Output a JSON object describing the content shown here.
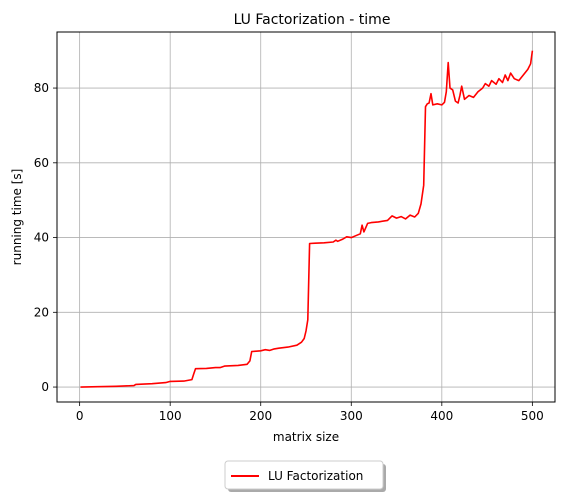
{
  "chart_data": {
    "type": "line",
    "title": "LU Factorization - time",
    "xlabel": "matrix size",
    "ylabel": "running time [s]",
    "xlim": [
      -25,
      525
    ],
    "ylim": [
      -4,
      95
    ],
    "xticks": [
      0,
      100,
      200,
      300,
      400,
      500
    ],
    "yticks": [
      0,
      20,
      40,
      60,
      80
    ],
    "grid": true,
    "legend": {
      "placement": "bottom-center-outside"
    },
    "series": [
      {
        "name": "LU Factorization",
        "color": "#ff0000",
        "points": [
          [
            1,
            0.0
          ],
          [
            20,
            0.1
          ],
          [
            40,
            0.2
          ],
          [
            60,
            0.4
          ],
          [
            62,
            0.7
          ],
          [
            80,
            0.9
          ],
          [
            95,
            1.2
          ],
          [
            100,
            1.5
          ],
          [
            115,
            1.6
          ],
          [
            124,
            2.0
          ],
          [
            126,
            3.5
          ],
          [
            128,
            4.9
          ],
          [
            140,
            5.0
          ],
          [
            150,
            5.2
          ],
          [
            155,
            5.2
          ],
          [
            160,
            5.6
          ],
          [
            175,
            5.8
          ],
          [
            185,
            6.1
          ],
          [
            188,
            7.0
          ],
          [
            190,
            9.5
          ],
          [
            195,
            9.6
          ],
          [
            200,
            9.7
          ],
          [
            205,
            10.0
          ],
          [
            210,
            9.8
          ],
          [
            215,
            10.2
          ],
          [
            220,
            10.4
          ],
          [
            230,
            10.7
          ],
          [
            240,
            11.2
          ],
          [
            245,
            12.0
          ],
          [
            248,
            13.0
          ],
          [
            250,
            15.0
          ],
          [
            252,
            18.0
          ],
          [
            254,
            38.4
          ],
          [
            260,
            38.5
          ],
          [
            270,
            38.6
          ],
          [
            280,
            38.8
          ],
          [
            283,
            39.3
          ],
          [
            285,
            39.0
          ],
          [
            290,
            39.5
          ],
          [
            295,
            40.2
          ],
          [
            300,
            40.0
          ],
          [
            305,
            40.5
          ],
          [
            310,
            41.0
          ],
          [
            312,
            43.3
          ],
          [
            314,
            41.5
          ],
          [
            318,
            43.8
          ],
          [
            322,
            44.0
          ],
          [
            330,
            44.2
          ],
          [
            340,
            44.6
          ],
          [
            345,
            45.8
          ],
          [
            350,
            45.2
          ],
          [
            355,
            45.6
          ],
          [
            360,
            45.0
          ],
          [
            365,
            46.0
          ],
          [
            370,
            45.5
          ],
          [
            374,
            46.5
          ],
          [
            377,
            49.0
          ],
          [
            380,
            54.0
          ],
          [
            382,
            75.0
          ],
          [
            384,
            75.8
          ],
          [
            386,
            76.0
          ],
          [
            388,
            78.5
          ],
          [
            390,
            75.5
          ],
          [
            395,
            75.8
          ],
          [
            400,
            75.5
          ],
          [
            403,
            76.2
          ],
          [
            405,
            79.0
          ],
          [
            407,
            86.8
          ],
          [
            409,
            80.0
          ],
          [
            412,
            79.5
          ],
          [
            415,
            76.5
          ],
          [
            418,
            76.0
          ],
          [
            420,
            78.0
          ],
          [
            422,
            80.5
          ],
          [
            425,
            77.0
          ],
          [
            430,
            78.0
          ],
          [
            435,
            77.5
          ],
          [
            440,
            79.0
          ],
          [
            445,
            80.0
          ],
          [
            448,
            81.2
          ],
          [
            452,
            80.5
          ],
          [
            455,
            82.0
          ],
          [
            460,
            81.0
          ],
          [
            463,
            82.5
          ],
          [
            467,
            81.5
          ],
          [
            470,
            83.5
          ],
          [
            473,
            82.0
          ],
          [
            476,
            84.0
          ],
          [
            480,
            82.5
          ],
          [
            485,
            82.0
          ],
          [
            490,
            83.5
          ],
          [
            495,
            85.0
          ],
          [
            498,
            86.5
          ],
          [
            500,
            90.0
          ]
        ]
      }
    ]
  }
}
